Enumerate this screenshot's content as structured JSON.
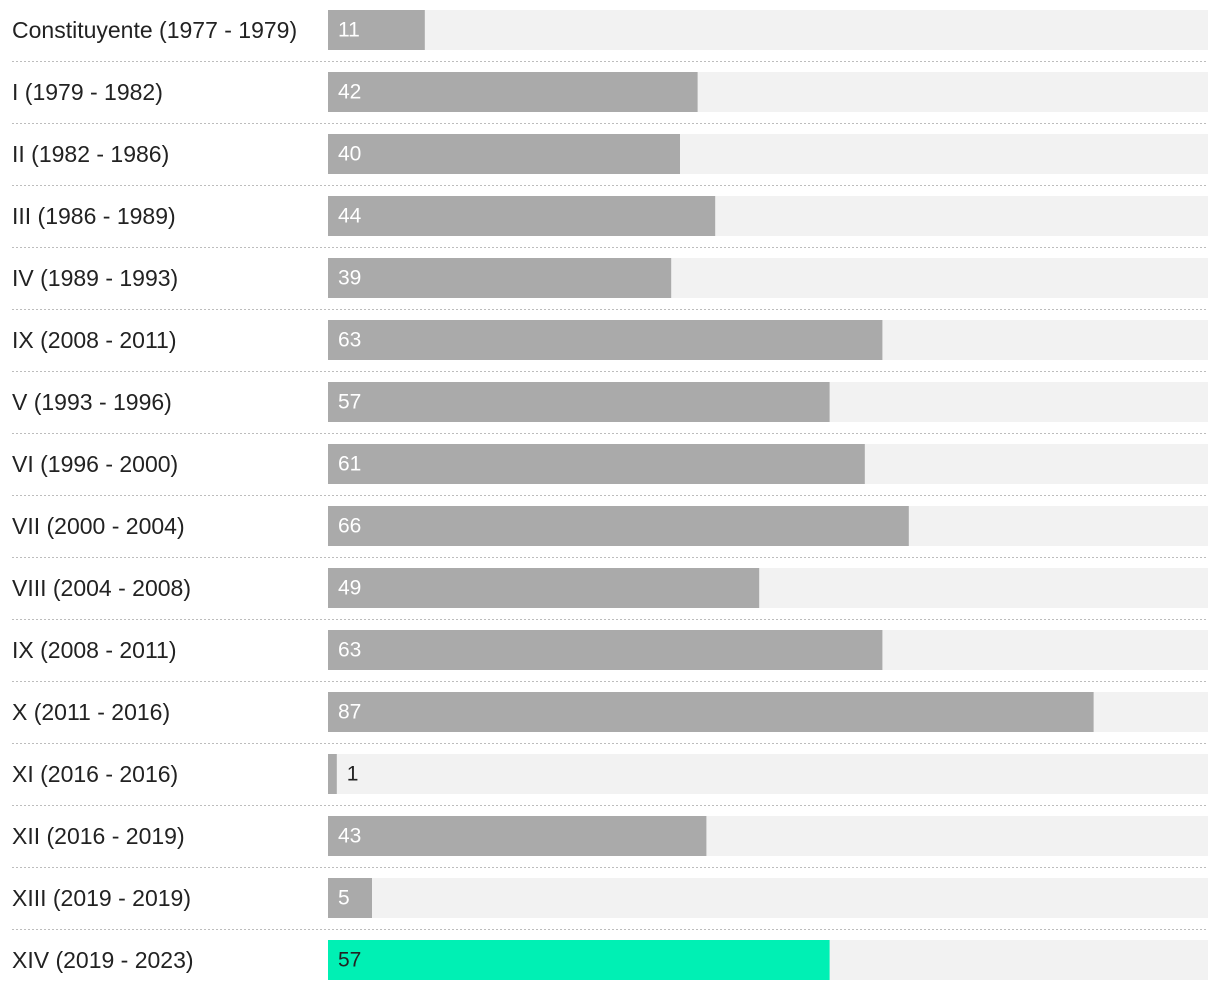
{
  "chart_data": {
    "type": "bar",
    "orientation": "horizontal",
    "categories": [
      "Constituyente (1977 - 1979)",
      "I (1979 - 1982)",
      "II (1982 - 1986)",
      "III (1986 - 1989)",
      "IV (1989 - 1993)",
      "IX (2008 - 2011)",
      "V (1993 - 1996)",
      "VI (1996 - 2000)",
      "VII (2000 - 2004)",
      "VIII (2004 - 2008)",
      "IX (2008 - 2011)",
      "X (2011 - 2016)",
      "XI (2016 - 2016)",
      "XII (2016 - 2019)",
      "XIII (2019 - 2019)",
      "XIV (2019 - 2023)"
    ],
    "values": [
      11,
      42,
      40,
      44,
      39,
      63,
      57,
      61,
      66,
      49,
      63,
      87,
      1,
      43,
      5,
      57
    ],
    "title": "",
    "xlabel": "",
    "ylabel": "",
    "xlim": [
      0,
      100
    ],
    "highlight_index": 15,
    "colors": {
      "bar": "#aaaaaa",
      "highlight": "#00f0b4",
      "track": "#f2f2f2",
      "label_on_bar": "#ffffff",
      "label_dark": "#222222"
    },
    "grid": false,
    "legend": "none"
  }
}
